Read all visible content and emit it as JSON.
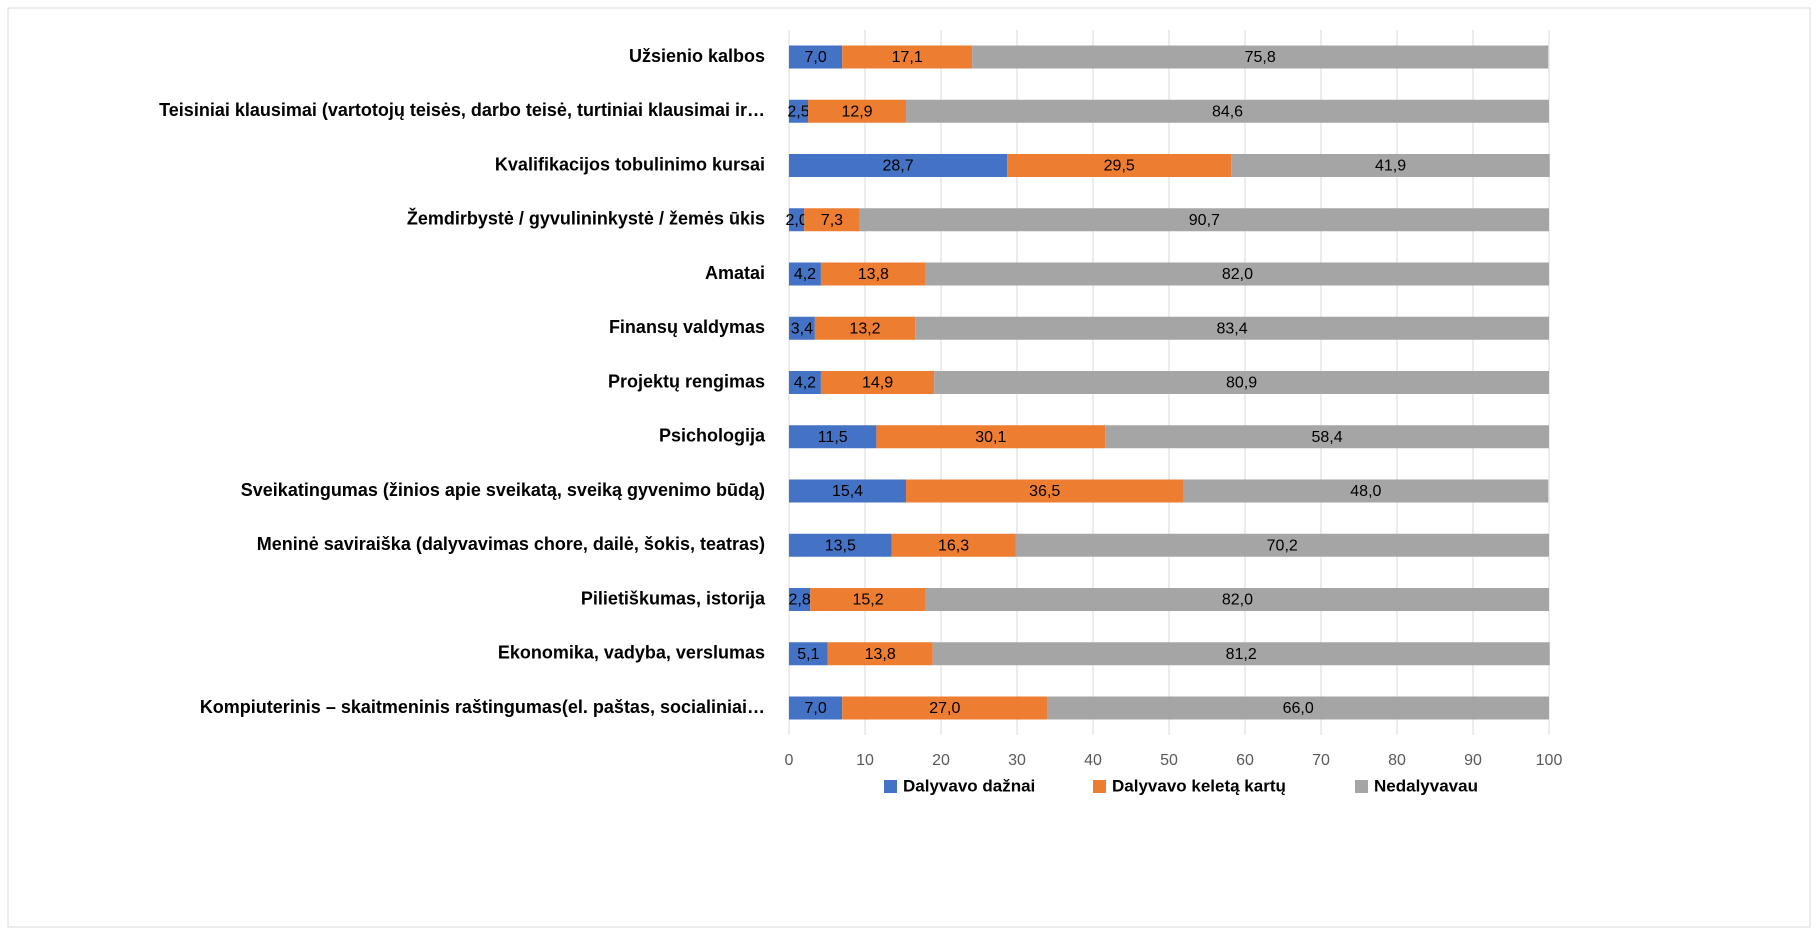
{
  "chart_data": {
    "type": "stacked_bar_horizontal",
    "categories": [
      "Užsienio kalbos",
      "Teisiniai klausimai (vartotojų teisės, darbo teisė, turtiniai klausimai ir…",
      "Kvalifikacijos tobulinimo kursai",
      "Žemdirbystė / gyvulininkystė / žemės ūkis",
      "Amatai",
      "Finansų valdymas",
      "Projektų rengimas",
      "Psichologija",
      "Sveikatingumas (žinios apie sveikatą, sveiką gyvenimo būdą)",
      "Meninė saviraiška (dalyvavimas chore, dailė, šokis, teatras)",
      "Pilietiškumas, istorija",
      "Ekonomika, vadyba, verslumas",
      "Kompiuterinis – skaitmeninis raštingumas(el. paštas, socialiniai…"
    ],
    "series": [
      {
        "name": "Dalyvavo dažnai",
        "color": "#4472c4",
        "values": [
          7.0,
          2.5,
          28.7,
          2.0,
          4.2,
          3.4,
          4.2,
          11.5,
          15.4,
          13.5,
          2.8,
          5.1,
          7.0
        ],
        "value_labels": [
          "7,0",
          "2,5",
          "28,7",
          "2,0",
          "4,2",
          "3,4",
          "4,2",
          "11,5",
          "15,4",
          "13,5",
          "2,8",
          "5,1",
          "7,0"
        ]
      },
      {
        "name": "Dalyvavo keletą kartų",
        "color": "#ed7d31",
        "values": [
          17.1,
          12.9,
          29.5,
          7.3,
          13.8,
          13.2,
          14.9,
          30.1,
          36.5,
          16.3,
          15.2,
          13.8,
          27.0
        ],
        "value_labels": [
          "17,1",
          "12,9",
          "29,5",
          "7,3",
          "13,8",
          "13,2",
          "14,9",
          "30,1",
          "36,5",
          "16,3",
          "15,2",
          "13,8",
          "27,0"
        ]
      },
      {
        "name": "Nedalyvavau",
        "color": "#a5a5a5",
        "values": [
          75.8,
          84.6,
          41.9,
          90.7,
          82.0,
          83.4,
          80.9,
          58.4,
          48.0,
          70.2,
          82.0,
          81.2,
          66.0
        ],
        "value_labels": [
          "75,8",
          "84,6",
          "41,9",
          "90,7",
          "82,0",
          "83,4",
          "80,9",
          "58,4",
          "48,0",
          "70,2",
          "82,0",
          "81,2",
          "66,0"
        ]
      }
    ],
    "xlim": [
      0,
      100
    ],
    "xticks": [
      0,
      10,
      20,
      30,
      40,
      50,
      60,
      70,
      80,
      90,
      100
    ],
    "grid": true,
    "legend": "bottom"
  }
}
